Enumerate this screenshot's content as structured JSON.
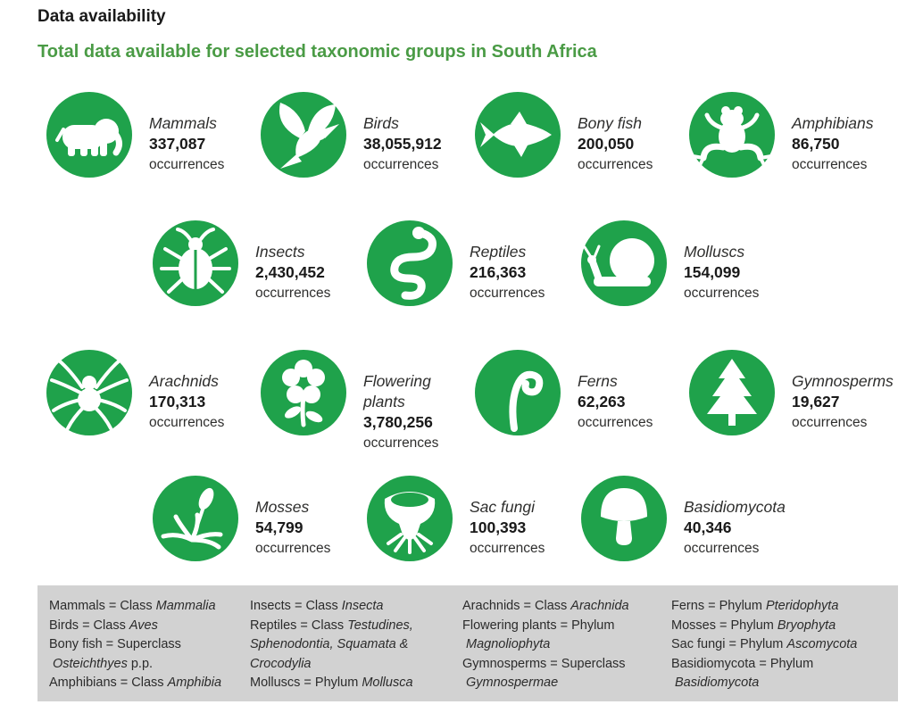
{
  "header": {
    "title": "Data availability",
    "subtitle": "Total data available for selected taxonomic groups in South Africa"
  },
  "occurrences_label": "occurrences",
  "colors": {
    "icon_circle_green": "#1FA24B",
    "subtitle_green": "#4A9B45",
    "legend_background": "#D2D2D2",
    "text_dark": "#2e2e2d"
  },
  "rows": [
    {
      "items": [
        {
          "name": "Mammals",
          "count": "337,087",
          "icon": "elephant-icon"
        },
        {
          "name": "Birds",
          "count": "38,055,912",
          "icon": "hummingbird-icon"
        },
        {
          "name": "Bony fish",
          "count": "200,050",
          "icon": "fish-icon"
        },
        {
          "name": "Amphibians",
          "count": "86,750",
          "icon": "frog-icon"
        }
      ]
    },
    {
      "items": [
        {
          "name": "Insects",
          "count": "2,430,452",
          "icon": "beetle-icon"
        },
        {
          "name": "Reptiles",
          "count": "216,363",
          "icon": "snake-icon"
        },
        {
          "name": "Molluscs",
          "count": "154,099",
          "icon": "snail-icon"
        }
      ]
    },
    {
      "items": [
        {
          "name": "Arachnids",
          "count": "170,313",
          "icon": "spider-icon"
        },
        {
          "name": "Flowering plants",
          "count": "3,780,256",
          "icon": "flower-icon"
        },
        {
          "name": "Ferns",
          "count": "62,263",
          "icon": "fiddlehead-icon"
        },
        {
          "name": "Gymnosperms",
          "count": "19,627",
          "icon": "conifer-icon"
        }
      ]
    },
    {
      "items": [
        {
          "name": "Mosses",
          "count": "54,799",
          "icon": "moss-icon"
        },
        {
          "name": "Sac fungi",
          "count": "100,393",
          "icon": "cup-fungus-icon"
        },
        {
          "name": "Basidiomycota",
          "count": "40,346",
          "icon": "mushroom-icon"
        }
      ]
    }
  ],
  "legend": {
    "columns": [
      {
        "lines": [
          {
            "indent": false,
            "segments": [
              {
                "text": "Mammals = Class ",
                "italic": false
              },
              {
                "text": "Mammalia",
                "italic": true
              }
            ]
          },
          {
            "indent": false,
            "segments": [
              {
                "text": "Birds = Class ",
                "italic": false
              },
              {
                "text": "Aves",
                "italic": true
              }
            ]
          },
          {
            "indent": false,
            "segments": [
              {
                "text": "Bony fish = Superclass",
                "italic": false
              }
            ]
          },
          {
            "indent": true,
            "segments": [
              {
                "text": "Osteichthyes",
                "italic": true
              },
              {
                "text": " p.p.",
                "italic": false
              }
            ]
          },
          {
            "indent": false,
            "segments": [
              {
                "text": "Amphibians = Class ",
                "italic": false
              },
              {
                "text": "Amphibia",
                "italic": true
              }
            ]
          }
        ]
      },
      {
        "lines": [
          {
            "indent": false,
            "segments": [
              {
                "text": "Insects = Class ",
                "italic": false
              },
              {
                "text": "Insecta",
                "italic": true
              }
            ]
          },
          {
            "indent": false,
            "segments": [
              {
                "text": "Reptiles = Class ",
                "italic": false
              },
              {
                "text": "Testudines,",
                "italic": true
              }
            ]
          },
          {
            "indent": false,
            "segments": [
              {
                "text": "Sphenodontia, Squamata &",
                "italic": true
              }
            ]
          },
          {
            "indent": false,
            "segments": [
              {
                "text": "Crocodylia",
                "italic": true
              }
            ]
          },
          {
            "indent": false,
            "segments": [
              {
                "text": "Molluscs = Phylum ",
                "italic": false
              },
              {
                "text": "Mollusca",
                "italic": true
              }
            ]
          }
        ]
      },
      {
        "lines": [
          {
            "indent": false,
            "segments": [
              {
                "text": "Arachnids = Class ",
                "italic": false
              },
              {
                "text": "Arachnida",
                "italic": true
              }
            ]
          },
          {
            "indent": false,
            "segments": [
              {
                "text": "Flowering plants = Phylum",
                "italic": false
              }
            ]
          },
          {
            "indent": true,
            "segments": [
              {
                "text": "Magnoliophyta",
                "italic": true
              }
            ]
          },
          {
            "indent": false,
            "segments": [
              {
                "text": "Gymnosperms = Superclass",
                "italic": false
              }
            ]
          },
          {
            "indent": true,
            "segments": [
              {
                "text": "Gymnospermae",
                "italic": true
              }
            ]
          }
        ]
      },
      {
        "lines": [
          {
            "indent": false,
            "segments": [
              {
                "text": "Ferns = Phylum ",
                "italic": false
              },
              {
                "text": "Pteridophyta",
                "italic": true
              }
            ]
          },
          {
            "indent": false,
            "segments": [
              {
                "text": "Mosses = Phylum ",
                "italic": false
              },
              {
                "text": "Bryophyta",
                "italic": true
              }
            ]
          },
          {
            "indent": false,
            "segments": [
              {
                "text": "Sac fungi = Phylum ",
                "italic": false
              },
              {
                "text": "Ascomycota",
                "italic": true
              }
            ]
          },
          {
            "indent": false,
            "segments": [
              {
                "text": "Basidiomycota = Phylum",
                "italic": false
              }
            ]
          },
          {
            "indent": true,
            "segments": [
              {
                "text": "Basidiomycota",
                "italic": true
              }
            ]
          }
        ]
      }
    ]
  },
  "chart_data": {
    "type": "table",
    "title": "Data availability",
    "subtitle": "Total data available for selected taxonomic groups in South Africa",
    "unit": "occurrences",
    "categories": [
      "Mammals",
      "Birds",
      "Bony fish",
      "Amphibians",
      "Insects",
      "Reptiles",
      "Molluscs",
      "Arachnids",
      "Flowering plants",
      "Ferns",
      "Gymnosperms",
      "Mosses",
      "Sac fungi",
      "Basidiomycota"
    ],
    "values": [
      337087,
      38055912,
      200050,
      86750,
      2430452,
      216363,
      154099,
      170313,
      3780256,
      62263,
      19627,
      54799,
      100393,
      40346
    ]
  }
}
